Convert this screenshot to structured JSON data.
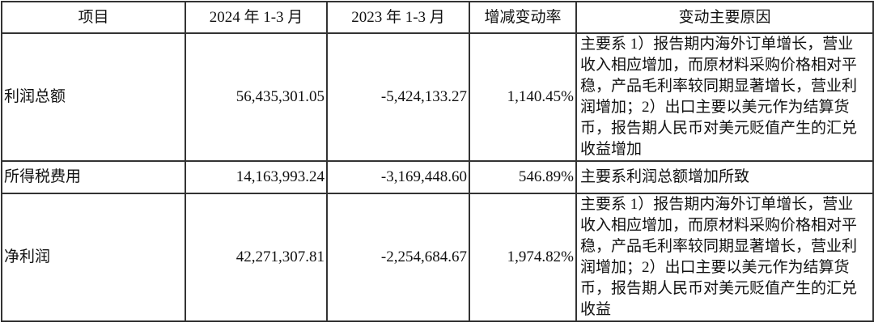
{
  "headers": [
    "项目",
    "2024 年 1-3 月",
    "2023 年 1-3 月",
    "增减变动率",
    "变动主要原因"
  ],
  "rows": [
    {
      "item": "利润总额",
      "y2024": "56,435,301.05",
      "y2023": "-5,424,133.27",
      "change": "1,140.45%",
      "reason_lines": [
        "主要系 1）报告期内海外订单增长，营业",
        "收入相应增加，而原材料采购价格相对平",
        "稳，产品毛利率较同期显著增长，营业利",
        "润增加；2）出口主要以美元作为结算货",
        "币，报告期人民币对美元贬值产生的汇兑",
        "收益增加"
      ]
    },
    {
      "item": "所得税费用",
      "y2024": "14,163,993.24",
      "y2023": "-3,169,448.60",
      "change": "546.89%",
      "reason_lines": [
        "主要系利润总额增加所致"
      ]
    },
    {
      "item": "净利润",
      "y2024": "42,271,307.81",
      "y2023": "-2,254,684.67",
      "change": "1,974.82%",
      "reason_lines": [
        "主要系 1）报告期内海外订单增长，营业",
        "收入相应增加，而原材料采购价格相对平",
        "稳，产品毛利率较同期显著增长，营业利",
        "润增加；2）出口主要以美元作为结算货",
        "币，报告期人民币对美元贬值产生的汇兑",
        "收益"
      ]
    }
  ]
}
